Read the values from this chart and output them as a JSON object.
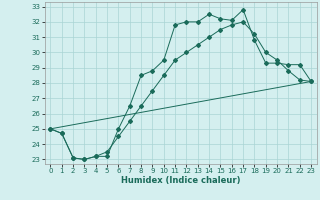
{
  "title": "",
  "xlabel": "Humidex (Indice chaleur)",
  "xlim": [
    -0.5,
    23.5
  ],
  "ylim": [
    22.7,
    33.3
  ],
  "yticks": [
    23,
    24,
    25,
    26,
    27,
    28,
    29,
    30,
    31,
    32,
    33
  ],
  "xticks": [
    0,
    1,
    2,
    3,
    4,
    5,
    6,
    7,
    8,
    9,
    10,
    11,
    12,
    13,
    14,
    15,
    16,
    17,
    18,
    19,
    20,
    21,
    22,
    23
  ],
  "line_color": "#1a6b5a",
  "bg_color": "#d4efef",
  "grid_color": "#aad4d4",
  "line1_x": [
    0,
    1,
    2,
    3,
    4,
    5,
    6,
    7,
    8,
    9,
    10,
    11,
    12,
    13,
    14,
    15,
    16,
    17,
    18,
    19,
    20,
    21,
    22,
    23
  ],
  "line1_y": [
    25.0,
    24.7,
    23.1,
    23.0,
    23.2,
    23.2,
    25.0,
    26.5,
    28.5,
    28.8,
    29.5,
    31.8,
    32.0,
    32.0,
    32.5,
    32.2,
    32.1,
    32.8,
    30.8,
    29.3,
    29.3,
    29.2,
    29.2,
    28.1
  ],
  "line2_x": [
    0,
    1,
    2,
    3,
    4,
    5,
    6,
    7,
    8,
    9,
    10,
    11,
    12,
    13,
    14,
    15,
    16,
    17,
    18,
    19,
    20,
    21,
    22,
    23
  ],
  "line2_y": [
    25.0,
    24.7,
    23.1,
    23.0,
    23.2,
    23.5,
    24.5,
    25.5,
    26.5,
    27.5,
    28.5,
    29.5,
    30.0,
    30.5,
    31.0,
    31.5,
    31.8,
    32.0,
    31.2,
    30.0,
    29.5,
    28.8,
    28.2,
    28.1
  ],
  "line3_x": [
    0,
    23
  ],
  "line3_y": [
    25.0,
    28.1
  ],
  "marker": "D",
  "marker_size": 2.0,
  "linewidth": 0.7
}
